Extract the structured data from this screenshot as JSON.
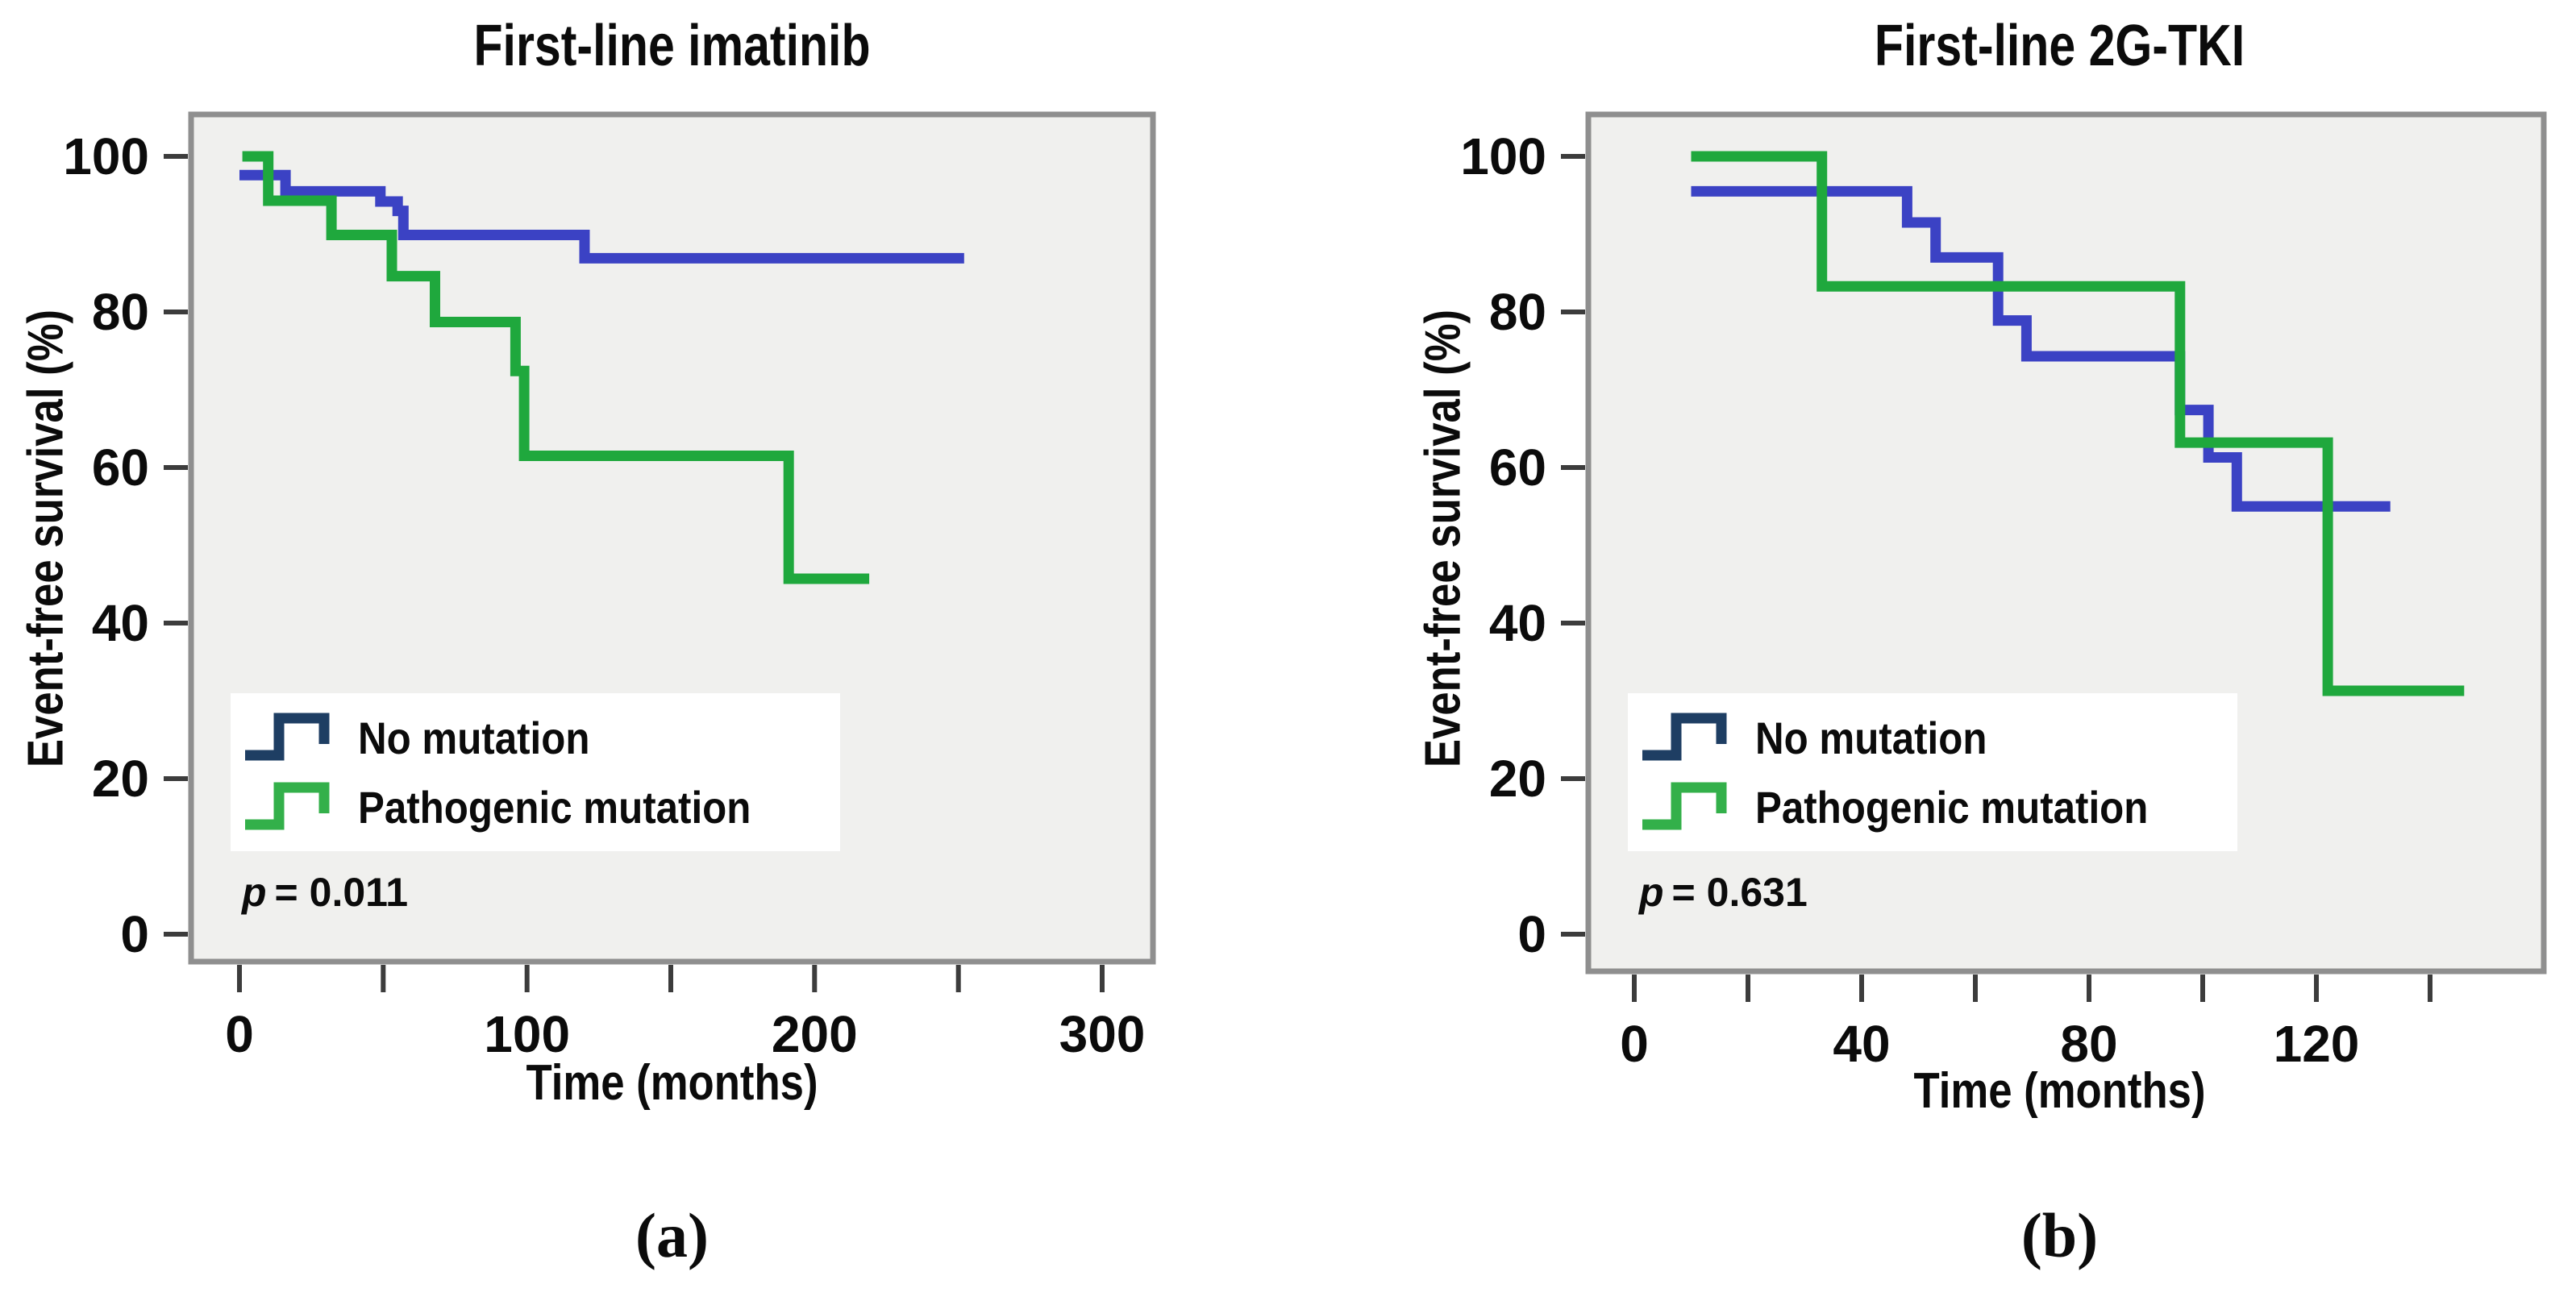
{
  "figure": {
    "background": "#ffffff",
    "plot_background": "#f0f0ee",
    "frame_color": "#8f8f8f"
  },
  "panels": [
    {
      "id": "a",
      "title": "First-line imatinib",
      "x_axis_label": "Time (months)",
      "y_axis_label": "Event-free survival (%)",
      "panel_label": "(a)",
      "p_value": {
        "symbol": "p",
        "text": "= 0.011"
      },
      "legend": {
        "items": [
          {
            "label": "No mutation",
            "color": "#1e3e63"
          },
          {
            "label": "Pathogenic mutation",
            "color": "#33b04a"
          }
        ]
      }
    },
    {
      "id": "b",
      "title": "First-line 2G-TKI",
      "x_axis_label": "Time (months)",
      "y_axis_label": "Event-free survival (%)",
      "panel_label": "(b)",
      "p_value": {
        "symbol": "p",
        "text": "= 0.631"
      },
      "legend": {
        "items": [
          {
            "label": "No mutation",
            "color": "#1e3e63"
          },
          {
            "label": "Pathogenic mutation",
            "color": "#33b04a"
          }
        ]
      }
    }
  ],
  "chart_data": [
    {
      "type": "line",
      "subtype": "kaplan-meier-step",
      "panel": "a",
      "title": "First-line imatinib",
      "xlabel": "Time (months)",
      "ylabel": "Event-free survival (%)",
      "xlim": [
        0,
        318
      ],
      "ylim": [
        0,
        105
      ],
      "grid": false,
      "legend_position": "lower-left",
      "annotation": "p = 0.011",
      "xticks": [
        {
          "v": 0,
          "label": "0"
        },
        {
          "v": 50,
          "label": ""
        },
        {
          "v": 100,
          "label": "100"
        },
        {
          "v": 150,
          "label": ""
        },
        {
          "v": 200,
          "label": "200"
        },
        {
          "v": 250,
          "label": ""
        },
        {
          "v": 300,
          "label": "300"
        }
      ],
      "yticks": [
        {
          "v": 0,
          "label": "0"
        },
        {
          "v": 20,
          "label": "20"
        },
        {
          "v": 40,
          "label": "40"
        },
        {
          "v": 60,
          "label": "60"
        },
        {
          "v": 80,
          "label": "80"
        },
        {
          "v": 100,
          "label": "100"
        }
      ],
      "series": [
        {
          "name": "No mutation",
          "color": "#3b42c4",
          "steps": [
            [
              0,
              97.6
            ],
            [
              16,
              95.5
            ],
            [
              49,
              94.2
            ],
            [
              55,
              93.0
            ],
            [
              57,
              89.9
            ],
            [
              120,
              86.9
            ]
          ],
          "end_time": 252
        },
        {
          "name": "Pathogenic mutation",
          "color": "#1fa83d",
          "steps": [
            [
              1,
              100
            ],
            [
              10,
              94.3
            ],
            [
              32,
              89.9
            ],
            [
              53,
              84.6
            ],
            [
              68,
              78.7
            ],
            [
              96,
              72.4
            ],
            [
              99,
              61.5
            ],
            [
              191,
              45.7
            ]
          ],
          "end_time": 219
        }
      ]
    },
    {
      "type": "line",
      "subtype": "kaplan-meier-step",
      "panel": "b",
      "title": "First-line 2G-TKI",
      "xlabel": "Time (months)",
      "ylabel": "Event-free survival (%)",
      "xlim": [
        0,
        160
      ],
      "ylim": [
        0,
        105
      ],
      "grid": false,
      "legend_position": "lower-left",
      "annotation": "p = 0.631",
      "xticks": [
        {
          "v": 0,
          "label": "0"
        },
        {
          "v": 20,
          "label": ""
        },
        {
          "v": 40,
          "label": "40"
        },
        {
          "v": 60,
          "label": ""
        },
        {
          "v": 80,
          "label": "80"
        },
        {
          "v": 100,
          "label": ""
        },
        {
          "v": 120,
          "label": "120"
        },
        {
          "v": 140,
          "label": ""
        }
      ],
      "yticks": [
        {
          "v": 0,
          "label": "0"
        },
        {
          "v": 20,
          "label": "20"
        },
        {
          "v": 40,
          "label": "40"
        },
        {
          "v": 60,
          "label": "60"
        },
        {
          "v": 80,
          "label": "80"
        },
        {
          "v": 100,
          "label": "100"
        }
      ],
      "series": [
        {
          "name": "No mutation",
          "color": "#3b42c4",
          "steps": [
            [
              10,
              95.5
            ],
            [
              48,
              91.5
            ],
            [
              53,
              87.0
            ],
            [
              64,
              78.9
            ],
            [
              69,
              74.3
            ],
            [
              96,
              67.4
            ],
            [
              101,
              61.3
            ],
            [
              106,
              55.0
            ]
          ],
          "end_time": 133
        },
        {
          "name": "Pathogenic mutation",
          "color": "#1fa83d",
          "steps": [
            [
              10,
              100
            ],
            [
              33,
              83.3
            ],
            [
              96,
              63.2
            ],
            [
              122,
              31.3
            ]
          ],
          "end_time": 146
        }
      ]
    }
  ]
}
